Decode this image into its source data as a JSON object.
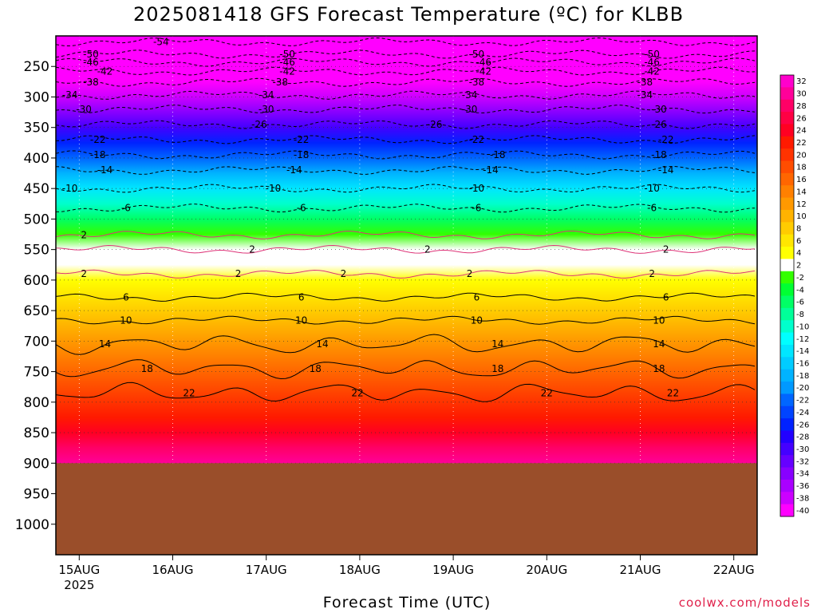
{
  "title": "2025081418 GFS Forecast Temperature (ºC) for KLBB",
  "credit": "coolwx.com/models",
  "chart_data": {
    "type": "heatmap",
    "title": "2025081418 GFS Forecast Temperature (ºC) for KLBB",
    "xlabel": "Forecast Time (UTC)",
    "ylabel": "",
    "y_axis": {
      "ticks": [
        250,
        300,
        350,
        400,
        450,
        500,
        550,
        600,
        650,
        700,
        750,
        800,
        850,
        900,
        950,
        1000
      ],
      "inverted": true,
      "range": [
        200,
        1050
      ]
    },
    "x_axis": {
      "ticks": [
        "15AUG",
        "16AUG",
        "17AUG",
        "18AUG",
        "19AUG",
        "20AUG",
        "21AUG",
        "22AUG"
      ],
      "year_label": "2025",
      "start_offset_days": -0.25,
      "end_offset_days": 7.25
    },
    "ground_level_hpa": 900,
    "levels_hpa": [
      210,
      230,
      250,
      275,
      300,
      325,
      350,
      375,
      400,
      425,
      450,
      475,
      500,
      525,
      550,
      575,
      600,
      625,
      650,
      675,
      700,
      725,
      750,
      775,
      800,
      825,
      850,
      875,
      900
    ],
    "profile_temperature_c": [
      -54,
      -50,
      -46,
      -42,
      -38,
      -34,
      -30,
      -26,
      -22,
      -18,
      -14,
      -10,
      -6,
      -2,
      1,
      2,
      3,
      5,
      7,
      9,
      11,
      13,
      16,
      18,
      20,
      22,
      24,
      27,
      30
    ],
    "colorbar": {
      "labels": [
        "32",
        "30",
        "28",
        "26",
        "24",
        "22",
        "20",
        "18",
        "16",
        "14",
        "12",
        "10",
        "8",
        "6",
        "4",
        "2",
        "-2",
        "-4",
        "-6",
        "-8",
        "-10",
        "-12",
        "-14",
        "-16",
        "-18",
        "-20",
        "-22",
        "-24",
        "-26",
        "-28",
        "-30",
        "-32",
        "-34",
        "-36",
        "-38",
        "-40"
      ],
      "colors": [
        "#ff00cc",
        "#ff0099",
        "#ff0066",
        "#ff0044",
        "#ff0022",
        "#ff1a00",
        "#ff3300",
        "#ff4d00",
        "#ff6600",
        "#ff8000",
        "#ff9900",
        "#ffb300",
        "#ffcc00",
        "#ffe600",
        "#ffff00",
        "#ffffff",
        "#33ff00",
        "#00ff33",
        "#00ff66",
        "#00ff99",
        "#00ffcc",
        "#00ffff",
        "#00e6ff",
        "#00ccff",
        "#00b3ff",
        "#0099ff",
        "#0066ff",
        "#0044ff",
        "#0022ff",
        "#2200ff",
        "#4400ff",
        "#6600ff",
        "#8800ff",
        "#aa00ff",
        "#cc00ff",
        "#ff00ff"
      ]
    },
    "contours": [
      {
        "value": "-54",
        "level": 210,
        "positions": [
          0.15
        ]
      },
      {
        "value": "-50",
        "level": 230,
        "positions": [
          0.05,
          0.33,
          0.6,
          0.85
        ]
      },
      {
        "value": "-46",
        "level": 243,
        "positions": [
          0.05,
          0.33,
          0.61,
          0.85
        ]
      },
      {
        "value": "-42",
        "level": 258,
        "positions": [
          0.07,
          0.33,
          0.61,
          0.85
        ]
      },
      {
        "value": "-38",
        "level": 276,
        "positions": [
          0.05,
          0.32,
          0.6,
          0.84
        ]
      },
      {
        "value": "-34",
        "level": 297,
        "positions": [
          0.02,
          0.3,
          0.59,
          0.84
        ]
      },
      {
        "value": "-30",
        "level": 320,
        "positions": [
          0.04,
          0.3,
          0.59,
          0.86
        ]
      },
      {
        "value": "-26",
        "level": 345,
        "positions": [
          0.29,
          0.54,
          0.86
        ]
      },
      {
        "value": "-22",
        "level": 370,
        "positions": [
          0.06,
          0.35,
          0.6,
          0.87
        ]
      },
      {
        "value": "-18",
        "level": 395,
        "positions": [
          0.06,
          0.35,
          0.63,
          0.86
        ]
      },
      {
        "value": "-14",
        "level": 420,
        "positions": [
          0.07,
          0.34,
          0.62,
          0.87
        ]
      },
      {
        "value": "-10",
        "level": 450,
        "positions": [
          0.02,
          0.31,
          0.6,
          0.85
        ]
      },
      {
        "value": "-6",
        "level": 482,
        "positions": [
          0.1,
          0.35,
          0.6,
          0.85
        ]
      },
      {
        "value": "2",
        "level": 526,
        "positions": [
          0.04
        ]
      },
      {
        "value": "2",
        "level": 550,
        "positions": [
          0.28,
          0.53,
          0.87
        ]
      },
      {
        "value": "2",
        "level": 590,
        "positions": [
          0.04,
          0.26,
          0.41,
          0.59,
          0.85
        ]
      },
      {
        "value": "6",
        "level": 628,
        "positions": [
          0.1,
          0.35,
          0.6,
          0.87
        ]
      },
      {
        "value": "10",
        "level": 666,
        "positions": [
          0.1,
          0.35,
          0.6,
          0.86
        ]
      },
      {
        "value": "14",
        "level": 705,
        "positions": [
          0.07,
          0.38,
          0.63,
          0.86
        ]
      },
      {
        "value": "18",
        "level": 745,
        "positions": [
          0.13,
          0.37,
          0.63,
          0.86
        ]
      },
      {
        "value": "22",
        "level": 785,
        "positions": [
          0.19,
          0.43,
          0.7,
          0.88
        ]
      }
    ]
  }
}
